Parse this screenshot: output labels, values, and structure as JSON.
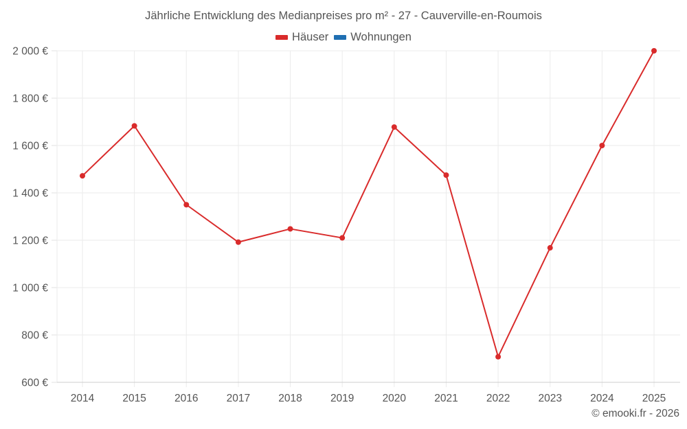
{
  "title": "Jährliche Entwicklung des Medianpreises pro m² - 27 - Cauverville-en-Roumois",
  "legend": [
    {
      "label": "Häuser",
      "color": "#d92b2b"
    },
    {
      "label": "Wohnungen",
      "color": "#1f6fb2"
    }
  ],
  "credit": "© emooki.fr - 2026",
  "chart_data": {
    "type": "line",
    "title": "Jährliche Entwicklung des Medianpreises pro m² - 27 - Cauverville-en-Roumois",
    "xlabel": "",
    "ylabel": "",
    "categories": [
      "2014",
      "2015",
      "2016",
      "2017",
      "2018",
      "2019",
      "2020",
      "2021",
      "2022",
      "2023",
      "2024",
      "2025"
    ],
    "series": [
      {
        "name": "Häuser",
        "color": "#d92b2b",
        "values": [
          1472,
          1683,
          1350,
          1192,
          1248,
          1210,
          1678,
          1475,
          708,
          1168,
          1600,
          2000
        ]
      },
      {
        "name": "Wohnungen",
        "color": "#1f6fb2",
        "values": []
      }
    ],
    "ylim": [
      600,
      2000
    ],
    "yticks": [
      600,
      800,
      1000,
      1200,
      1400,
      1600,
      1800,
      2000
    ],
    "ytick_labels": [
      "600 €",
      "800 €",
      "1 000 €",
      "1 200 €",
      "1 400 €",
      "1 600 €",
      "1 800 €",
      "2 000 €"
    ],
    "grid": true,
    "legend_position": "top"
  }
}
